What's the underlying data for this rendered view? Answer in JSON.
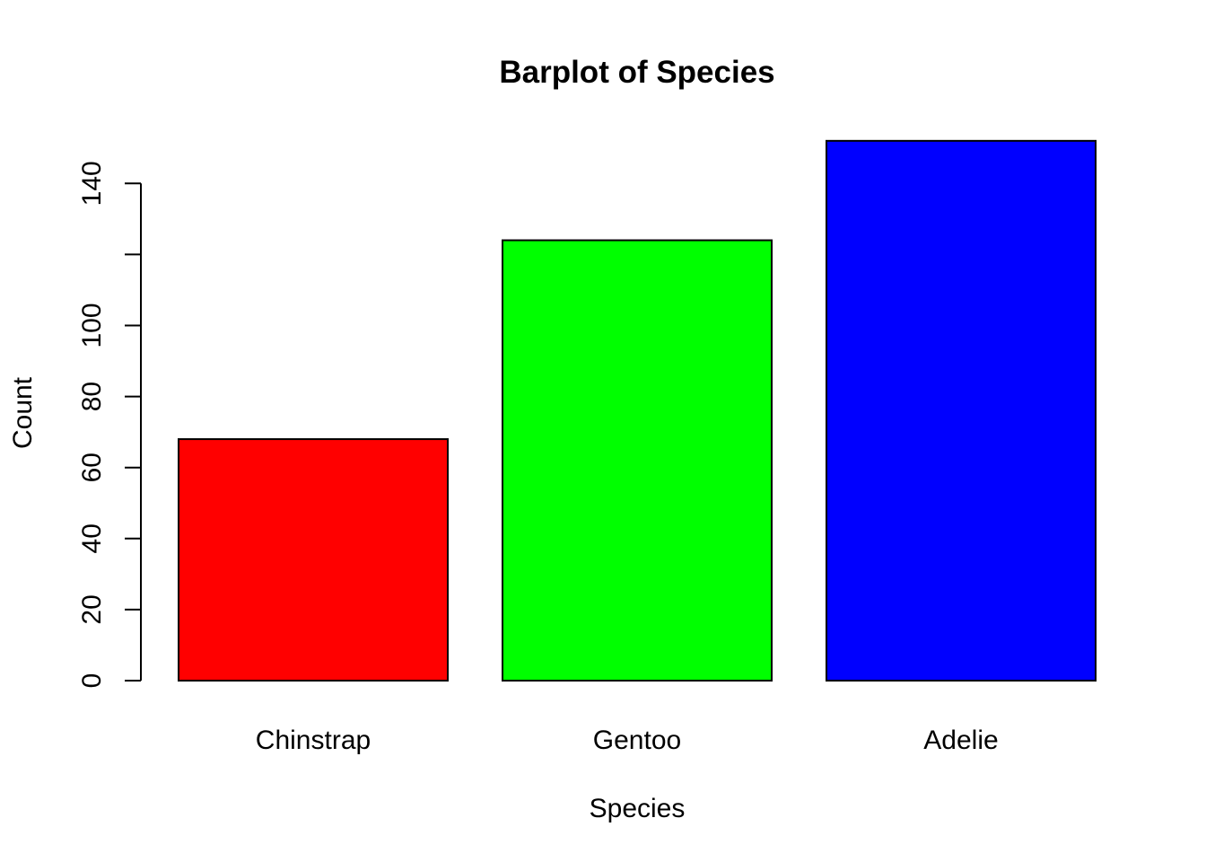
{
  "chart_data": {
    "type": "bar",
    "title": "Barplot of Species",
    "xlabel": "Species",
    "ylabel": "Count",
    "categories": [
      "Chinstrap",
      "Gentoo",
      "Adelie"
    ],
    "values": [
      68,
      124,
      152
    ],
    "colors": [
      "#ff0000",
      "#00ff00",
      "#0000ff"
    ],
    "bar_border_color": "#000000",
    "ylim": [
      0,
      152
    ],
    "yticks": [
      0,
      20,
      40,
      60,
      80,
      100,
      120,
      140
    ],
    "ytick_labels": [
      "0",
      "20",
      "40",
      "60",
      "80",
      "100",
      "",
      "140"
    ],
    "grid": false,
    "legend": "none"
  }
}
